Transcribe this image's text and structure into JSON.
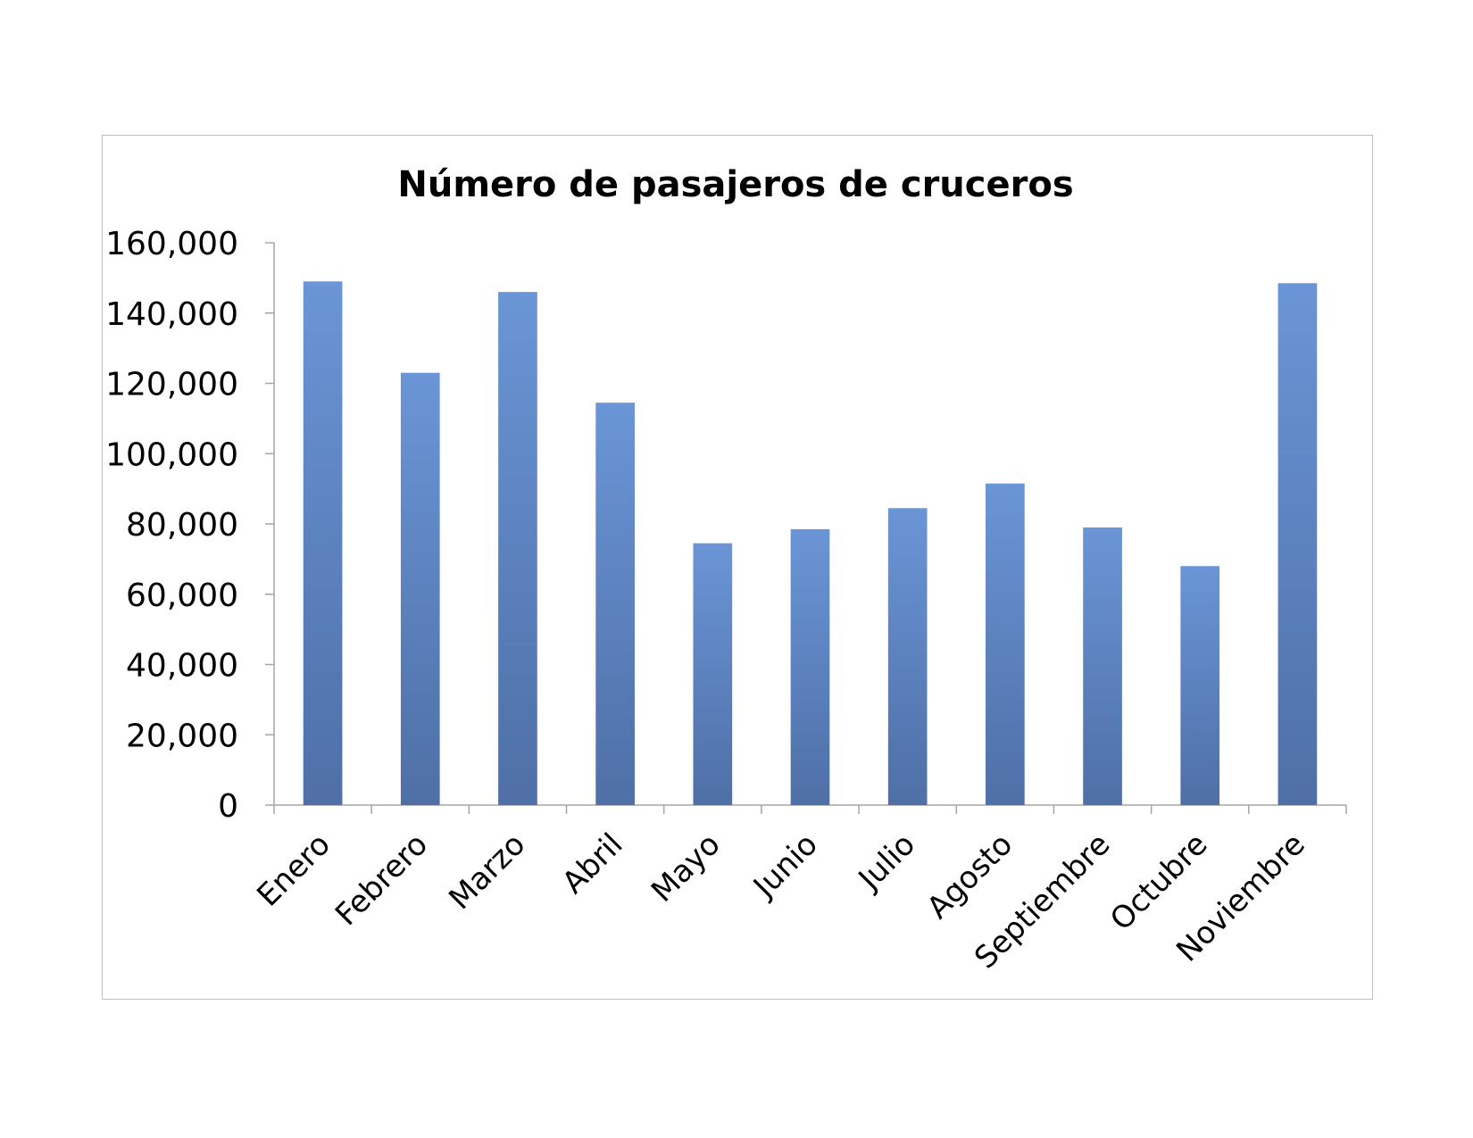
{
  "chart_data": {
    "type": "bar",
    "title": "Número de pasajeros de cruceros",
    "xlabel": "",
    "ylabel": "",
    "categories": [
      "Enero",
      "Febrero",
      "Marzo",
      "Abril",
      "Mayo",
      "Junio",
      "Julio",
      "Agosto",
      "Septiembre",
      "Octubre",
      "Noviembre"
    ],
    "values": [
      149000,
      123000,
      146000,
      114500,
      74500,
      78500,
      84500,
      91500,
      79000,
      68000,
      148500
    ],
    "ylim": [
      0,
      160000
    ],
    "yticks": [
      "0",
      "20,000",
      "40,000",
      "60,000",
      "80,000",
      "100,000",
      "120,000",
      "140,000",
      "160,000"
    ],
    "grid": false,
    "legend": "none",
    "bar_color_top": "#6a95d6",
    "bar_color_bottom": "#4f6fa6"
  }
}
